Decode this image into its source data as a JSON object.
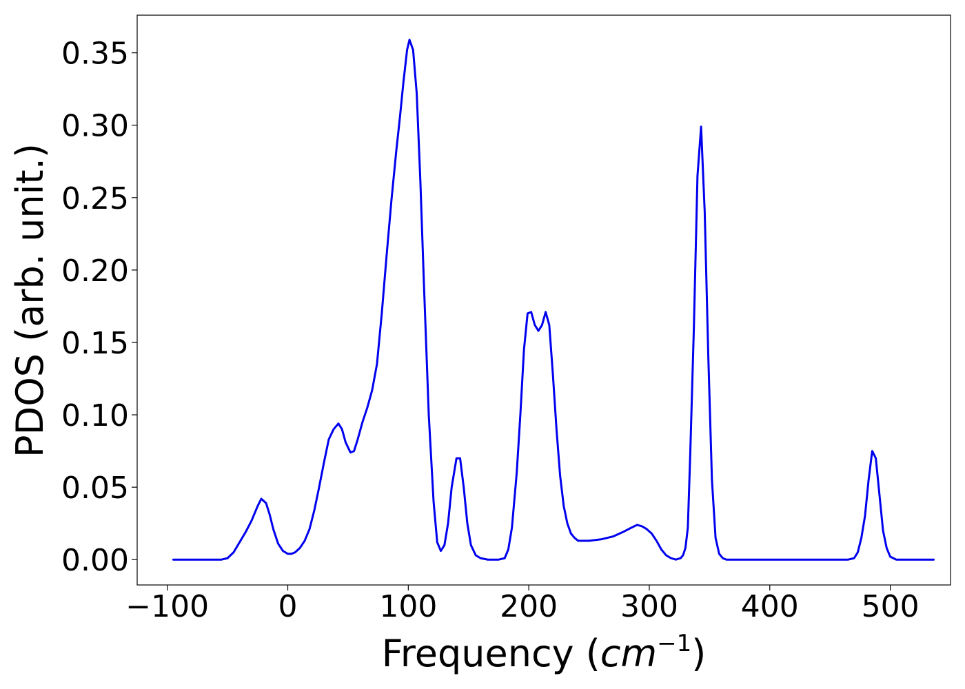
{
  "chart_data": {
    "type": "line",
    "title": "",
    "xlabel": "Frequency",
    "xlabel_unit_prefix": "(",
    "xlabel_unit_italic": "cm",
    "xlabel_unit_sup": "−1",
    "xlabel_unit_suffix": ")",
    "ylabel": "PDOS (arb. unit.)",
    "xlim": [
      -125,
      550
    ],
    "ylim": [
      -0.0175,
      0.376
    ],
    "xticks": [
      -100,
      0,
      100,
      200,
      300,
      400,
      500
    ],
    "xtick_labels": [
      "−100",
      "0",
      "100",
      "200",
      "300",
      "400",
      "500"
    ],
    "yticks": [
      0.0,
      0.05,
      0.1,
      0.15,
      0.2,
      0.25,
      0.3,
      0.35
    ],
    "ytick_labels": [
      "0.00",
      "0.05",
      "0.10",
      "0.15",
      "0.20",
      "0.25",
      "0.30",
      "0.35"
    ],
    "grid": false,
    "line_color": "#0000ee",
    "series": [
      {
        "x": [
          -95,
          -55,
          -50,
          -45,
          -40,
          -35,
          -30,
          -25,
          -22,
          -18,
          -15,
          -12,
          -8,
          -4,
          0,
          3,
          6,
          10,
          14,
          18,
          22,
          26,
          30,
          34,
          38,
          42,
          45,
          48,
          52,
          55,
          58,
          62,
          66,
          70,
          74,
          78,
          82,
          86,
          90,
          93,
          96,
          99,
          101,
          104,
          107,
          110,
          113,
          117,
          121,
          124,
          127,
          130,
          133,
          136,
          140,
          143,
          146,
          149,
          152,
          156,
          160,
          166,
          175,
          180,
          183,
          186,
          190,
          193,
          196,
          199,
          202,
          205,
          208,
          211,
          214,
          217,
          220,
          223,
          226,
          229,
          232,
          235,
          238,
          241,
          245,
          250,
          260,
          270,
          278,
          285,
          290,
          294,
          298,
          302,
          306,
          310,
          314,
          318,
          322,
          326,
          328,
          330,
          332,
          334,
          337,
          340,
          343,
          346,
          349,
          352,
          355,
          358,
          361,
          364,
          367,
          372,
          380,
          465,
          470,
          473,
          476,
          479,
          482,
          485,
          488,
          491,
          494,
          497,
          500,
          505,
          536
        ],
        "y": [
          0.0,
          0.0,
          0.001,
          0.005,
          0.012,
          0.019,
          0.027,
          0.037,
          0.042,
          0.039,
          0.031,
          0.021,
          0.011,
          0.006,
          0.004,
          0.004,
          0.005,
          0.008,
          0.013,
          0.021,
          0.034,
          0.05,
          0.067,
          0.083,
          0.09,
          0.094,
          0.09,
          0.081,
          0.074,
          0.075,
          0.083,
          0.095,
          0.105,
          0.117,
          0.135,
          0.17,
          0.21,
          0.248,
          0.282,
          0.305,
          0.33,
          0.352,
          0.359,
          0.352,
          0.322,
          0.262,
          0.19,
          0.1,
          0.04,
          0.012,
          0.006,
          0.01,
          0.025,
          0.05,
          0.07,
          0.07,
          0.05,
          0.025,
          0.01,
          0.003,
          0.001,
          0.0,
          0.0,
          0.001,
          0.007,
          0.022,
          0.06,
          0.1,
          0.145,
          0.17,
          0.171,
          0.162,
          0.158,
          0.162,
          0.171,
          0.162,
          0.128,
          0.09,
          0.058,
          0.037,
          0.025,
          0.018,
          0.015,
          0.013,
          0.013,
          0.013,
          0.014,
          0.016,
          0.019,
          0.022,
          0.024,
          0.023,
          0.021,
          0.018,
          0.013,
          0.007,
          0.003,
          0.001,
          0.0,
          0.001,
          0.003,
          0.008,
          0.022,
          0.073,
          0.16,
          0.265,
          0.299,
          0.24,
          0.14,
          0.055,
          0.015,
          0.004,
          0.001,
          0.0,
          0.0,
          0.0,
          0.0,
          0.0,
          0.001,
          0.005,
          0.015,
          0.03,
          0.055,
          0.075,
          0.07,
          0.045,
          0.02,
          0.008,
          0.002,
          0.0,
          0.0
        ]
      }
    ]
  }
}
